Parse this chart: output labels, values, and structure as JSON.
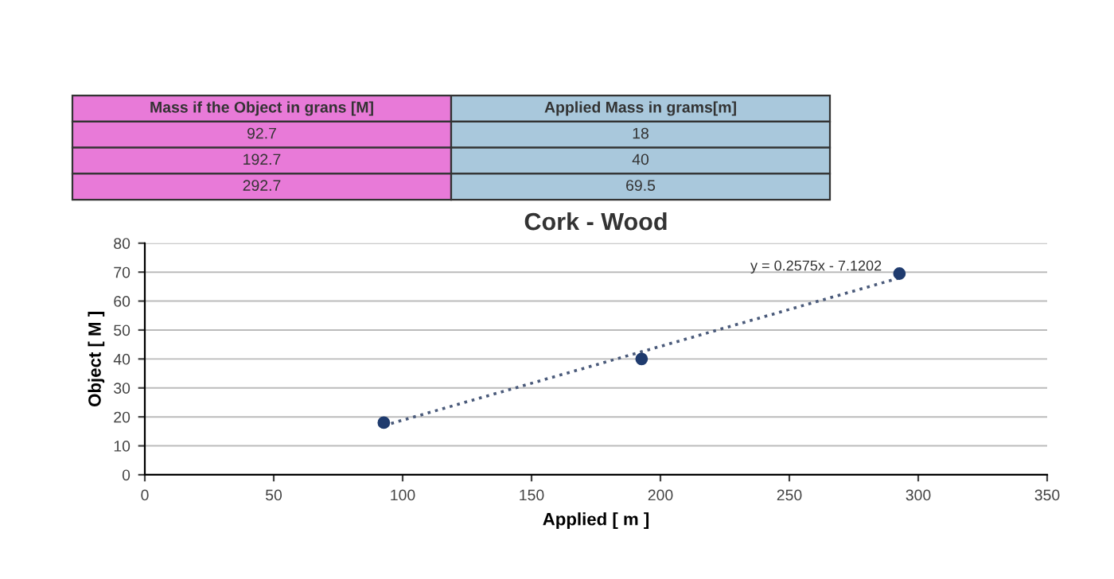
{
  "chart_data": {
    "type": "scatter",
    "title": "Cork - Wood",
    "xlabel": "Applied [ m ]",
    "ylabel": "Object [ M ]",
    "x": [
      92.7,
      192.7,
      292.7
    ],
    "series": [
      {
        "color": "#1f3b6e",
        "values": [
          18,
          40,
          69.5
        ],
        "marker": "circle"
      },
      {
        "type": "line",
        "color": "#4a5a7a",
        "x": [
          92.7,
          292.7
        ],
        "values": [
          17,
          68
        ],
        "line_style": "dotted",
        "marker": "none"
      }
    ],
    "xlim": [
      0,
      350
    ],
    "xticks": [
      0,
      50,
      100,
      150,
      200,
      250,
      300,
      350
    ],
    "ylim": [
      0,
      80
    ],
    "yticks": [
      0,
      10,
      20,
      30,
      40,
      50,
      60,
      70,
      80
    ],
    "grid": "y",
    "legend": false,
    "annotations": [
      "Mass if the Object in grans [M]",
      "Applied Mass in grams[m]",
      "92.7",
      "18",
      "192.7",
      "40",
      "292.7",
      "69.5",
      {
        "text": "y = 0.2575x - 7.1202",
        "x": 292.7,
        "y": 68
      }
    ]
  }
}
